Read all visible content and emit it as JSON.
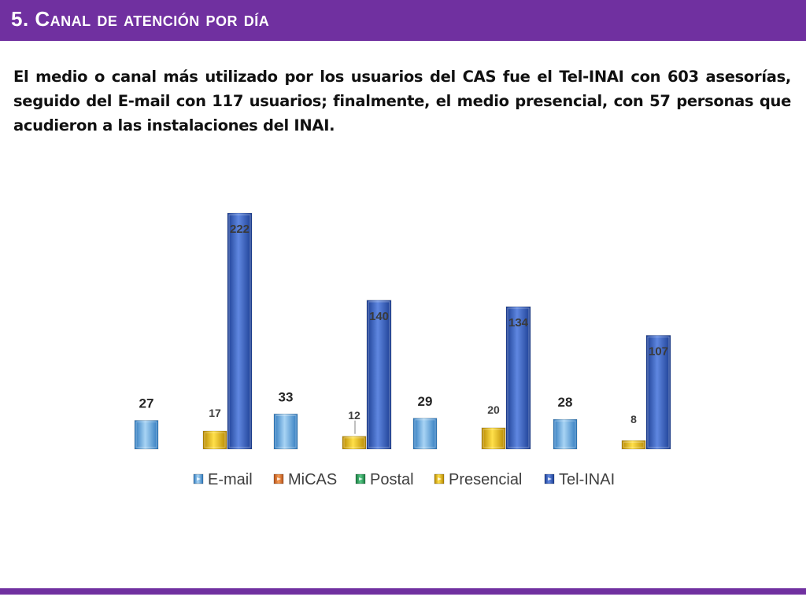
{
  "header": {
    "title": "5. Canal de atención por día"
  },
  "body": {
    "paragraph": "El medio o canal más utilizado por los usuarios del CAS fue el Tel-INAI con 603 asesorías, seguido del E-mail con 117 usuarios; finalmente, el medio presencial, con 57 personas que acudieron a las instalaciones del INAI."
  },
  "colors": {
    "brand": "#7030a0",
    "email": "#5ea3db",
    "micas": "#e0762b",
    "postal": "#2aa05a",
    "presencial": "#e4b400",
    "telinai": "#2f56b8"
  },
  "chart_data": {
    "type": "bar",
    "categories": [
      "",
      "",
      "",
      ""
    ],
    "series": [
      {
        "name": "E-mail",
        "values": [
          27,
          33,
          29,
          28
        ],
        "color": "#5ea3db"
      },
      {
        "name": "MiCAS",
        "values": [
          0,
          0,
          0,
          0
        ],
        "color": "#e0762b"
      },
      {
        "name": "Postal",
        "values": [
          0,
          0,
          0,
          0
        ],
        "color": "#2aa05a"
      },
      {
        "name": "Presencial",
        "values": [
          17,
          12,
          20,
          8
        ],
        "color": "#e4b400"
      },
      {
        "name": "Tel-INAI",
        "values": [
          222,
          140,
          134,
          107
        ],
        "color": "#2f56b8"
      }
    ],
    "legend": [
      "E-mail",
      "MiCAS",
      "Postal",
      "Presencial",
      "Tel-INAI"
    ],
    "legend_position": "bottom",
    "grid": false,
    "title": "",
    "xlabel": "",
    "ylabel": "",
    "ylim": [
      0,
      222
    ]
  }
}
